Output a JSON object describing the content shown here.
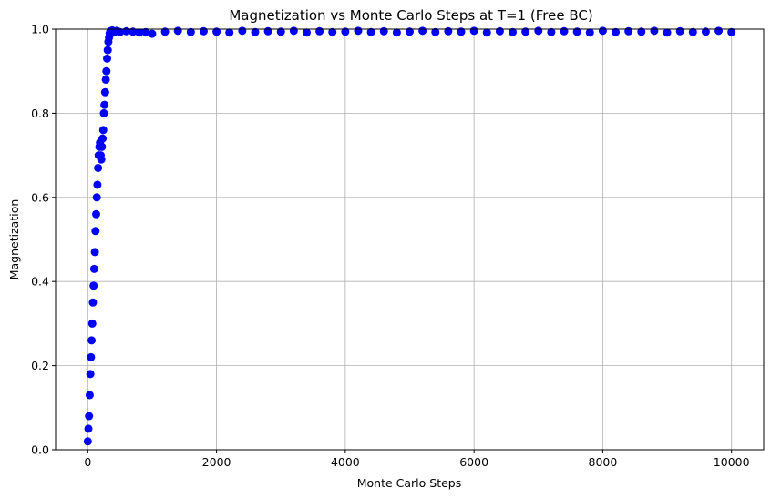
{
  "chart_data": {
    "type": "scatter",
    "title": "Magnetization vs Monte Carlo Steps at T=1 (Free BC)",
    "xlabel": "Monte Carlo Steps",
    "ylabel": "Magnetization",
    "xlim": [
      -500,
      10500
    ],
    "ylim": [
      0,
      1
    ],
    "xticks": [
      0,
      2000,
      4000,
      6000,
      8000,
      10000
    ],
    "yticks": [
      0.0,
      0.2,
      0.4,
      0.6,
      0.8,
      1.0
    ],
    "xtick_labels": [
      "0",
      "2000",
      "4000",
      "6000",
      "8000",
      "10000"
    ],
    "ytick_labels": [
      "0.0",
      "0.2",
      "0.4",
      "0.6",
      "0.8",
      "1.0"
    ],
    "grid": true,
    "marker_color": "#0000ff",
    "series": [
      {
        "x": [
          0,
          10,
          20,
          30,
          40,
          50,
          60,
          70,
          80,
          90,
          100,
          110,
          120,
          130,
          140,
          150,
          160,
          170,
          180,
          190,
          200,
          210,
          220,
          230,
          240,
          250,
          260,
          270,
          280,
          290,
          300,
          310,
          320,
          330,
          340,
          350,
          360,
          370,
          380,
          390,
          400,
          420,
          450,
          500,
          600,
          700,
          800,
          900,
          1000,
          1200,
          1400,
          1600,
          1800,
          2000,
          2200,
          2400,
          2600,
          2800,
          3000,
          3200,
          3400,
          3600,
          3800,
          4000,
          4200,
          4400,
          4600,
          4800,
          5000,
          5200,
          5400,
          5600,
          5800,
          6000,
          6200,
          6400,
          6600,
          6800,
          7000,
          7200,
          7400,
          7600,
          7800,
          8000,
          8200,
          8400,
          8600,
          8800,
          9000,
          9200,
          9400,
          9600,
          9800,
          10000
        ],
        "y": [
          0.02,
          0.05,
          0.08,
          0.13,
          0.18,
          0.22,
          0.26,
          0.3,
          0.35,
          0.39,
          0.43,
          0.47,
          0.52,
          0.56,
          0.6,
          0.63,
          0.67,
          0.7,
          0.72,
          0.73,
          0.7,
          0.69,
          0.72,
          0.74,
          0.76,
          0.8,
          0.82,
          0.85,
          0.88,
          0.9,
          0.93,
          0.95,
          0.97,
          0.98,
          0.99,
          0.995,
          0.99,
          0.993,
          0.997,
          0.995,
          0.992,
          0.994,
          0.996,
          0.993,
          0.995,
          0.994,
          0.992,
          0.993,
          0.989,
          0.994,
          0.996,
          0.993,
          0.995,
          0.994,
          0.992,
          0.996,
          0.993,
          0.995,
          0.994,
          0.996,
          0.992,
          0.995,
          0.993,
          0.994,
          0.996,
          0.993,
          0.995,
          0.992,
          0.994,
          0.996,
          0.993,
          0.995,
          0.994,
          0.996,
          0.992,
          0.995,
          0.993,
          0.994,
          0.996,
          0.993,
          0.995,
          0.994,
          0.992,
          0.996,
          0.993,
          0.995,
          0.994,
          0.996,
          0.992,
          0.995,
          0.993,
          0.994,
          0.996,
          0.993
        ]
      }
    ]
  }
}
